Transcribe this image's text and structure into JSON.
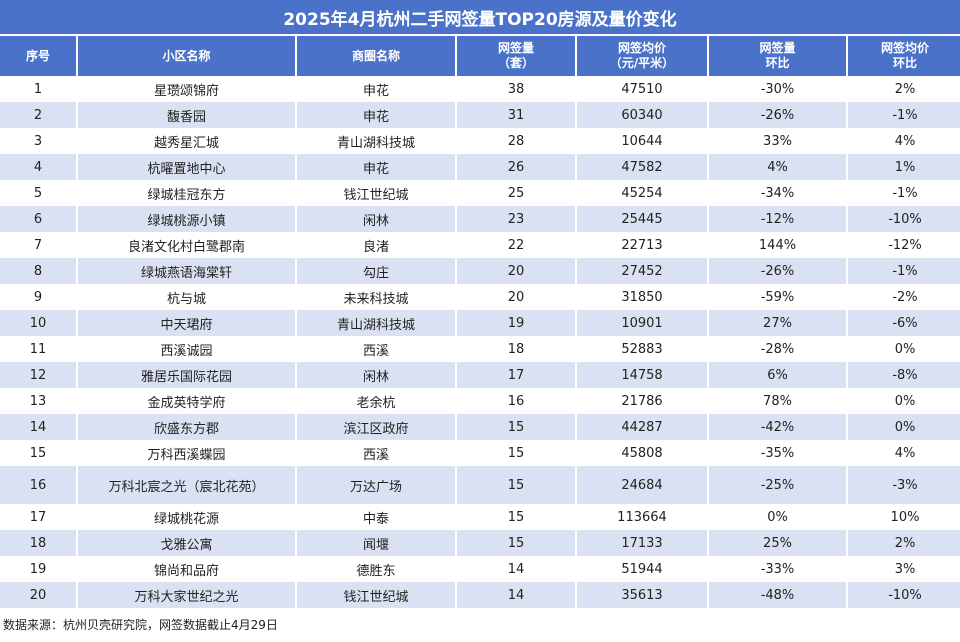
{
  "title": "2025年4月杭州二手网签量TOP20房源及量价变化",
  "headers": [
    [
      "序号"
    ],
    [
      "小区名称"
    ],
    [
      "商圈名称"
    ],
    [
      "网签量",
      "（套）"
    ],
    [
      "网签均价",
      "（元/平米）"
    ],
    [
      "网签量",
      "环比"
    ],
    [
      "网签均价",
      "环比"
    ]
  ],
  "rows": [
    [
      "1",
      "星瓒颂锦府",
      "申花",
      "38",
      "47510",
      "-30%",
      "2%"
    ],
    [
      "2",
      "馥香园",
      "申花",
      "31",
      "60340",
      "-26%",
      "-1%"
    ],
    [
      "3",
      "越秀星汇城",
      "青山湖科技城",
      "28",
      "10644",
      "33%",
      "4%"
    ],
    [
      "4",
      "杭曜置地中心",
      "申花",
      "26",
      "47582",
      "4%",
      "1%"
    ],
    [
      "5",
      "绿城桂冠东方",
      "钱江世纪城",
      "25",
      "45254",
      "-34%",
      "-1%"
    ],
    [
      "6",
      "绿城桃源小镇",
      "闲林",
      "23",
      "25445",
      "-12%",
      "-10%"
    ],
    [
      "7",
      "良渚文化村白鹭郡南",
      "良渚",
      "22",
      "22713",
      "144%",
      "-12%"
    ],
    [
      "8",
      "绿城燕语海棠轩",
      "勾庄",
      "20",
      "27452",
      "-26%",
      "-1%"
    ],
    [
      "9",
      "杭与城",
      "未来科技城",
      "20",
      "31850",
      "-59%",
      "-2%"
    ],
    [
      "10",
      "中天珺府",
      "青山湖科技城",
      "19",
      "10901",
      "27%",
      "-6%"
    ],
    [
      "11",
      "西溪诚园",
      "西溪",
      "18",
      "52883",
      "-28%",
      "0%"
    ],
    [
      "12",
      "雅居乐国际花园",
      "闲林",
      "17",
      "14758",
      "6%",
      "-8%"
    ],
    [
      "13",
      "金成英特学府",
      "老余杭",
      "16",
      "21786",
      "78%",
      "0%"
    ],
    [
      "14",
      "欣盛东方郡",
      "滨江区政府",
      "15",
      "44287",
      "-42%",
      "0%"
    ],
    [
      "15",
      "万科西溪蝶园",
      "西溪",
      "15",
      "45808",
      "-35%",
      "4%"
    ],
    [
      "16",
      "万科北宸之光（宸北花苑）",
      "万达广场",
      "15",
      "24684",
      "-25%",
      "-3%"
    ],
    [
      "17",
      "绿城桃花源",
      "中泰",
      "15",
      "113664",
      "0%",
      "10%"
    ],
    [
      "18",
      "戈雅公寓",
      "闻堰",
      "15",
      "17133",
      "25%",
      "2%"
    ],
    [
      "19",
      "锦尚和品府",
      "德胜东",
      "14",
      "51944",
      "-33%",
      "3%"
    ],
    [
      "20",
      "万科大家世纪之光",
      "钱江世纪城",
      "14",
      "35613",
      "-48%",
      "-10%"
    ]
  ],
  "footer": "数据来源：杭州贝壳研究院，网签数据截止4月29日",
  "colors": {
    "header": "#4a72c8",
    "stripe": "#dae1f2"
  }
}
